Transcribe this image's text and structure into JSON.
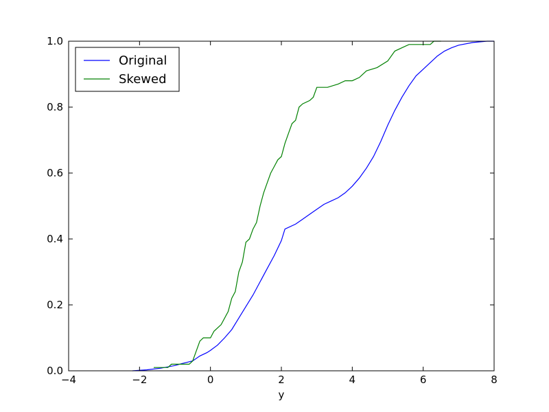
{
  "chart_data": {
    "type": "line",
    "title": "",
    "xlabel": "y",
    "ylabel": "",
    "xlim": [
      -4,
      8
    ],
    "ylim": [
      0,
      1.0
    ],
    "xticks": [
      -4,
      -2,
      0,
      2,
      4,
      6,
      8
    ],
    "xtick_labels": [
      "−4",
      "−2",
      "0",
      "2",
      "4",
      "6",
      "8"
    ],
    "yticks": [
      0,
      0.2,
      0.4,
      0.6,
      0.8,
      1.0
    ],
    "ytick_labels": [
      "0.0",
      "0.2",
      "0.4",
      "0.6",
      "0.8",
      "1.0"
    ],
    "grid": false,
    "legend_position": "top-left",
    "series": [
      {
        "name": "Original",
        "color": "#0000ff",
        "points": [
          [
            -2.2,
            0.0
          ],
          [
            -1.8,
            0.003
          ],
          [
            -1.4,
            0.008
          ],
          [
            -1.0,
            0.016
          ],
          [
            -0.8,
            0.022
          ],
          [
            -0.5,
            0.03
          ],
          [
            -0.3,
            0.045
          ],
          [
            -0.1,
            0.055
          ],
          [
            0.0,
            0.062
          ],
          [
            0.2,
            0.078
          ],
          [
            0.4,
            0.1
          ],
          [
            0.6,
            0.125
          ],
          [
            0.8,
            0.16
          ],
          [
            1.0,
            0.195
          ],
          [
            1.2,
            0.23
          ],
          [
            1.4,
            0.27
          ],
          [
            1.6,
            0.31
          ],
          [
            1.8,
            0.35
          ],
          [
            2.0,
            0.395
          ],
          [
            2.1,
            0.43
          ],
          [
            2.4,
            0.445
          ],
          [
            2.6,
            0.46
          ],
          [
            2.8,
            0.475
          ],
          [
            3.0,
            0.49
          ],
          [
            3.2,
            0.505
          ],
          [
            3.4,
            0.515
          ],
          [
            3.6,
            0.525
          ],
          [
            3.8,
            0.54
          ],
          [
            4.0,
            0.56
          ],
          [
            4.2,
            0.585
          ],
          [
            4.4,
            0.615
          ],
          [
            4.6,
            0.65
          ],
          [
            4.8,
            0.695
          ],
          [
            5.0,
            0.745
          ],
          [
            5.2,
            0.79
          ],
          [
            5.4,
            0.83
          ],
          [
            5.6,
            0.865
          ],
          [
            5.8,
            0.895
          ],
          [
            6.0,
            0.915
          ],
          [
            6.2,
            0.935
          ],
          [
            6.4,
            0.955
          ],
          [
            6.6,
            0.97
          ],
          [
            6.8,
            0.98
          ],
          [
            7.0,
            0.988
          ],
          [
            7.4,
            0.996
          ],
          [
            7.8,
            1.0
          ],
          [
            8.0,
            1.0
          ]
        ]
      },
      {
        "name": "Skewed",
        "color": "#008000",
        "points": [
          [
            -1.6,
            0.01
          ],
          [
            -1.2,
            0.01
          ],
          [
            -1.1,
            0.02
          ],
          [
            -0.8,
            0.02
          ],
          [
            -0.6,
            0.02
          ],
          [
            -0.5,
            0.03
          ],
          [
            -0.4,
            0.06
          ],
          [
            -0.3,
            0.09
          ],
          [
            -0.2,
            0.1
          ],
          [
            0.0,
            0.1
          ],
          [
            0.1,
            0.12
          ],
          [
            0.3,
            0.14
          ],
          [
            0.5,
            0.18
          ],
          [
            0.6,
            0.22
          ],
          [
            0.7,
            0.24
          ],
          [
            0.8,
            0.3
          ],
          [
            0.9,
            0.33
          ],
          [
            1.0,
            0.39
          ],
          [
            1.1,
            0.4
          ],
          [
            1.2,
            0.43
          ],
          [
            1.3,
            0.45
          ],
          [
            1.4,
            0.5
          ],
          [
            1.5,
            0.54
          ],
          [
            1.6,
            0.57
          ],
          [
            1.7,
            0.6
          ],
          [
            1.8,
            0.62
          ],
          [
            1.9,
            0.64
          ],
          [
            2.0,
            0.65
          ],
          [
            2.1,
            0.69
          ],
          [
            2.2,
            0.72
          ],
          [
            2.3,
            0.75
          ],
          [
            2.4,
            0.76
          ],
          [
            2.5,
            0.8
          ],
          [
            2.6,
            0.81
          ],
          [
            2.8,
            0.82
          ],
          [
            2.9,
            0.83
          ],
          [
            3.0,
            0.86
          ],
          [
            3.3,
            0.86
          ],
          [
            3.6,
            0.87
          ],
          [
            3.8,
            0.88
          ],
          [
            4.0,
            0.88
          ],
          [
            4.2,
            0.89
          ],
          [
            4.4,
            0.91
          ],
          [
            4.7,
            0.92
          ],
          [
            5.0,
            0.94
          ],
          [
            5.2,
            0.97
          ],
          [
            5.4,
            0.98
          ],
          [
            5.6,
            0.99
          ],
          [
            6.0,
            0.99
          ],
          [
            6.2,
            0.99
          ],
          [
            6.3,
            1.0
          ],
          [
            6.5,
            1.0
          ]
        ]
      }
    ]
  }
}
